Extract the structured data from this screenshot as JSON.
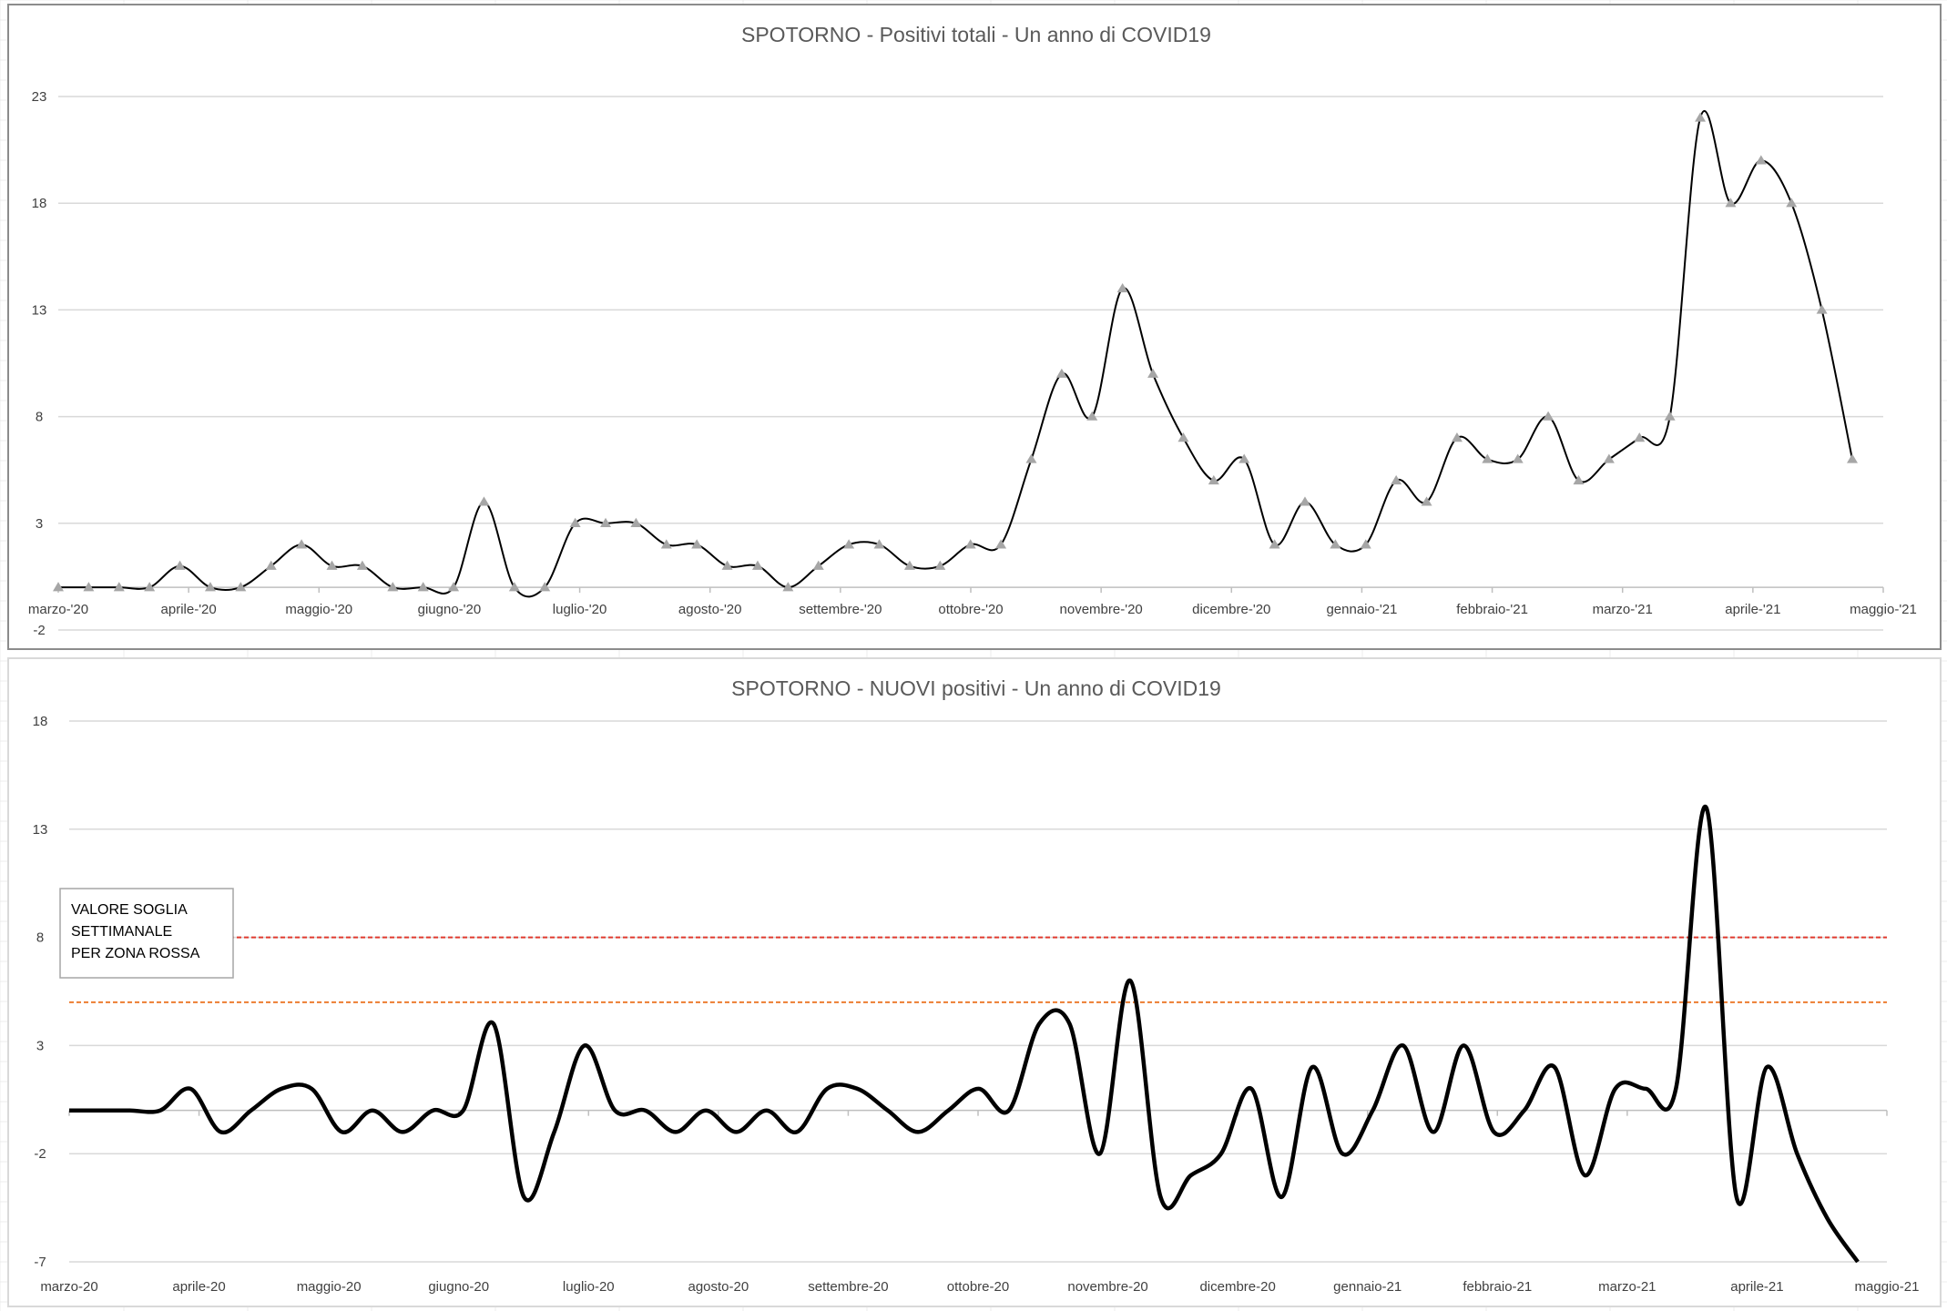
{
  "colors": {
    "gridline": "#d9d9d9",
    "axis": "#bfbfbf",
    "line": "#000000",
    "marker": "#a6a6a6",
    "threshold_red": "#e03a2e",
    "threshold_orange": "#ed7d31",
    "title": "#595959",
    "text": "#404040"
  },
  "chart_data": [
    {
      "type": "line",
      "title": "SPOTORNO - Positivi totali - Un anno di COVID19",
      "xlabel": "",
      "ylabel": "",
      "ylim": [
        -2,
        23
      ],
      "yticks": [
        23,
        18,
        13,
        8,
        3,
        -2
      ],
      "x_tick_labels": [
        "marzo-'20",
        "aprile-'20",
        "maggio-'20",
        "giugno-'20",
        "luglio-'20",
        "agosto-'20",
        "settembre-'20",
        "ottobre-'20",
        "novembre-'20",
        "dicembre-'20",
        "gennaio-'21",
        "febbraio-'21",
        "marzo-'21",
        "aprile-'21",
        "maggio-'21"
      ],
      "grid": true,
      "legend": "none",
      "marker": "triangle",
      "series": [
        {
          "values": [
            0,
            0,
            0,
            0,
            1,
            0,
            0,
            1,
            2,
            1,
            1,
            0,
            0,
            0,
            4,
            0,
            0,
            3,
            3,
            3,
            2,
            2,
            1,
            1,
            0,
            1,
            2,
            2,
            1,
            1,
            2,
            2,
            6,
            10,
            8,
            14,
            10,
            7,
            5,
            6,
            2,
            4,
            2,
            2,
            5,
            4,
            7,
            6,
            6,
            8,
            5,
            6,
            7,
            8,
            22,
            18,
            20,
            18,
            13,
            6
          ]
        }
      ]
    },
    {
      "type": "line",
      "title": "SPOTORNO - NUOVI positivi - Un anno di COVID19",
      "xlabel": "",
      "ylabel": "",
      "ylim": [
        -7,
        18
      ],
      "yticks": [
        18,
        13,
        8,
        3,
        -2,
        -7
      ],
      "x_tick_labels": [
        "marzo-20",
        "aprile-20",
        "maggio-20",
        "giugno-20",
        "luglio-20",
        "agosto-20",
        "settembre-20",
        "ottobre-20",
        "novembre-20",
        "dicembre-20",
        "gennaio-21",
        "febbraio-21",
        "marzo-21",
        "aprile-21",
        "maggio-21"
      ],
      "grid": true,
      "legend": "none",
      "series": [
        {
          "values": [
            0,
            0,
            0,
            0,
            1,
            -1,
            0,
            1,
            1,
            -1,
            0,
            -1,
            0,
            0,
            4,
            -4,
            -1,
            3,
            0,
            0,
            -1,
            0,
            -1,
            0,
            -1,
            1,
            1,
            0,
            -1,
            0,
            1,
            0,
            4,
            4,
            -2,
            6,
            -4,
            -3,
            -2,
            1,
            -4,
            2,
            -2,
            0,
            3,
            -1,
            3,
            -1,
            0,
            2,
            -3,
            1,
            1,
            1,
            14,
            -4,
            2,
            -2,
            -5,
            -7
          ]
        }
      ],
      "threshold_lines": [
        {
          "value": 8,
          "color": "#e03a2e"
        },
        {
          "value": 5,
          "color": "#ed7d31"
        }
      ],
      "annotation": {
        "lines": [
          "VALORE SOGLIA",
          "SETTIMANALE",
          "PER ZONA ROSSA"
        ]
      }
    }
  ]
}
